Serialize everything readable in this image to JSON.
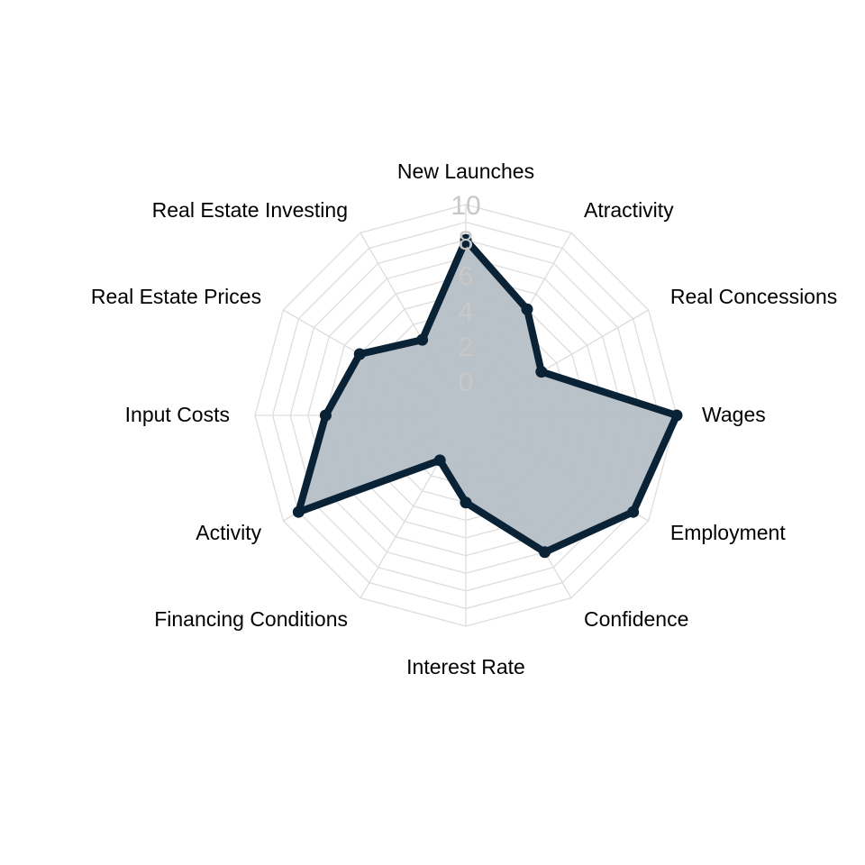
{
  "chart_data": {
    "type": "radar",
    "axes": [
      "New Launches",
      "Atractivity",
      "Real Concessions",
      "Wages",
      "Employment",
      "Confidence",
      "Interest Rate",
      "Financing Conditions",
      "Activity",
      "Input Costs",
      "Real Estate Prices",
      "Real Estate Investing"
    ],
    "values": [
      8,
      5,
      3,
      10,
      9,
      7,
      3,
      1,
      9,
      6,
      5,
      3
    ],
    "ticks": [
      "0",
      "2",
      "4",
      "6",
      "8",
      "10"
    ],
    "rlim": [
      0,
      10
    ],
    "grid": true,
    "colors": {
      "line": "#0a2235",
      "fill": "#b5bec6",
      "grid": "#dddddd",
      "tick": "#c8c8c8"
    }
  }
}
